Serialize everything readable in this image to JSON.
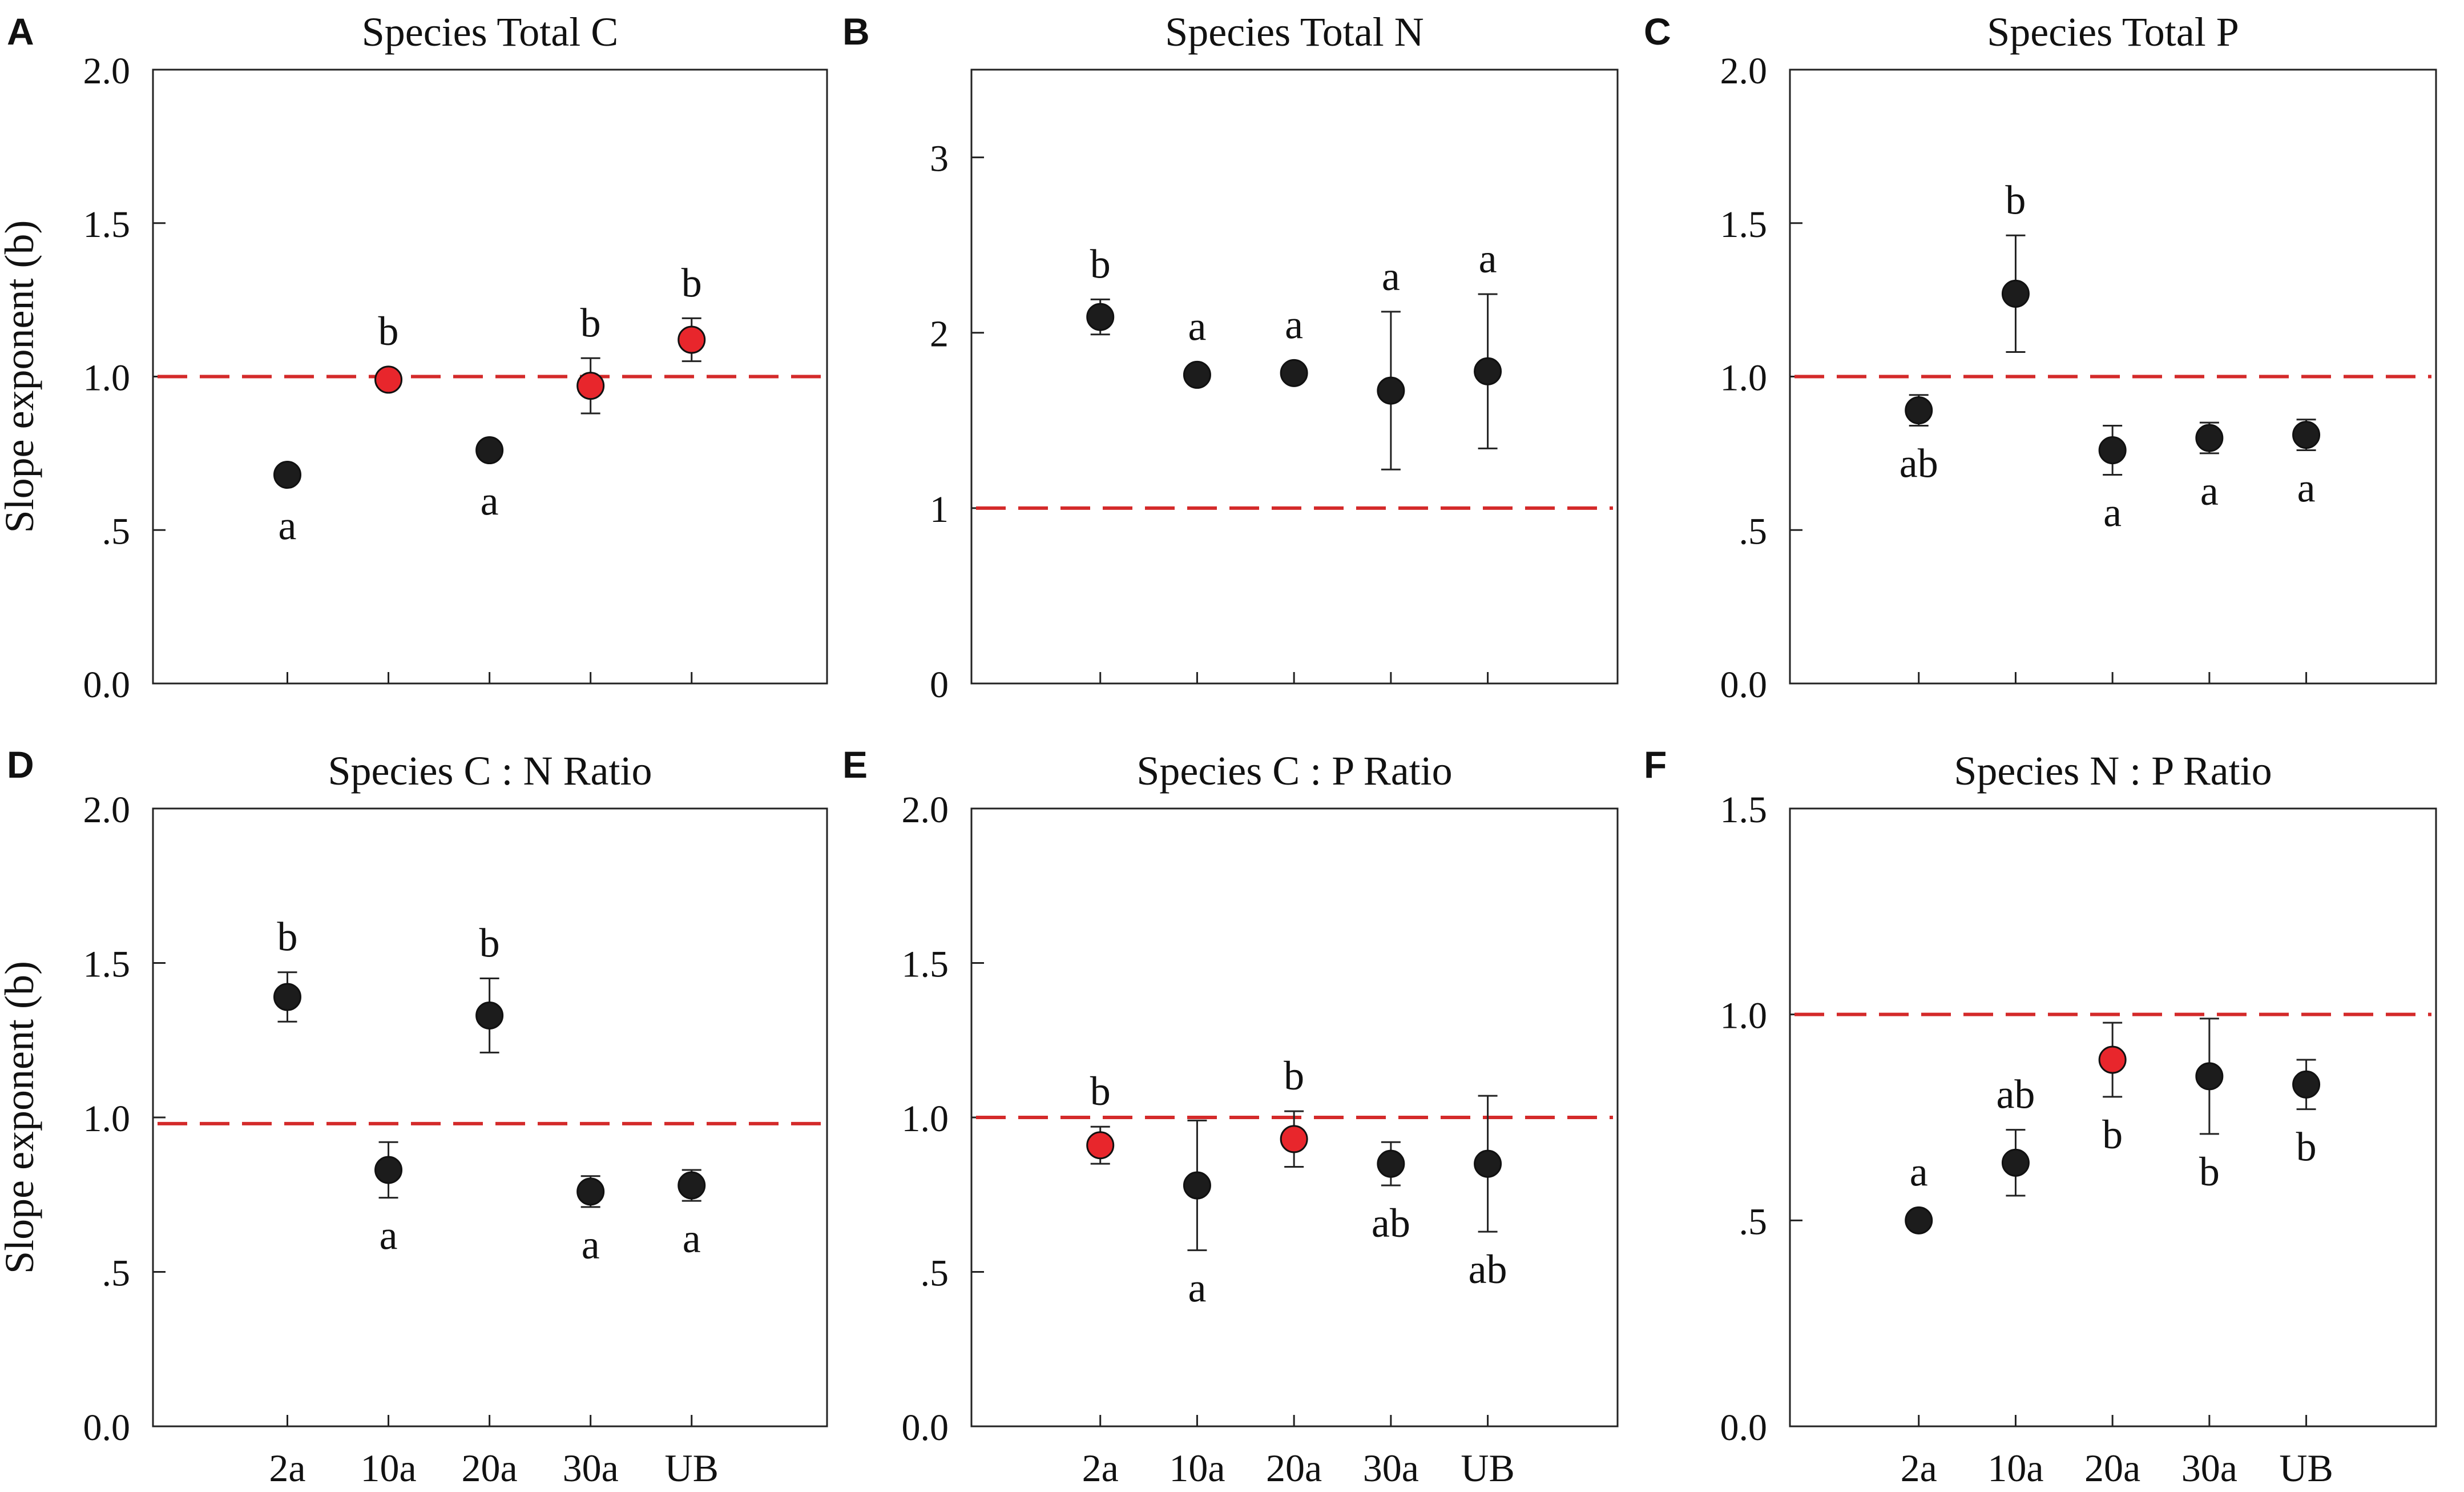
{
  "chart_data": [
    {
      "type": "scatter",
      "panel_letter": "A",
      "title": "Species Total C",
      "ylabel": "Slope exponent (b)",
      "ylim": [
        0,
        2
      ],
      "y_ticks": [
        0,
        0.5,
        1.0,
        1.5,
        2.0
      ],
      "y_tick_labels": [
        "0.0",
        ".5",
        "1.0",
        "1.5",
        "2.0"
      ],
      "categories": [
        "2a",
        "10a",
        "20a",
        "30a",
        "UB"
      ],
      "show_x_labels": false,
      "reference_line": 1.0,
      "reference_color": "#d42a2a",
      "values": [
        0.68,
        0.99,
        0.76,
        0.97,
        1.12
      ],
      "error": [
        0.02,
        0.01,
        0.01,
        0.09,
        0.07
      ],
      "point_colors": [
        "#1c1c1c",
        "#e8262c",
        "#1c1c1c",
        "#e8262c",
        "#e8262c"
      ],
      "letters": [
        "a",
        "b",
        "a",
        "b",
        "b"
      ],
      "letter_pos": [
        "below",
        "above",
        "below",
        "above",
        "above"
      ]
    },
    {
      "type": "scatter",
      "panel_letter": "B",
      "title": "Species Total N",
      "ylabel": "",
      "ylim": [
        0,
        3.5
      ],
      "y_ticks": [
        0,
        1,
        2,
        3
      ],
      "y_tick_labels": [
        "0",
        "1",
        "2",
        "3"
      ],
      "categories": [
        "2a",
        "10a",
        "20a",
        "30a",
        "UB"
      ],
      "show_x_labels": false,
      "reference_line": 1.0,
      "reference_color": "#d42a2a",
      "values": [
        2.09,
        1.76,
        1.77,
        1.67,
        1.78
      ],
      "error": [
        0.1,
        0.02,
        0.02,
        0.45,
        0.44
      ],
      "point_colors": [
        "#1c1c1c",
        "#1c1c1c",
        "#1c1c1c",
        "#1c1c1c",
        "#1c1c1c"
      ],
      "letters": [
        "b",
        "a",
        "a",
        "a",
        "a"
      ],
      "letter_pos": [
        "above",
        "above",
        "above",
        "above",
        "above"
      ]
    },
    {
      "type": "scatter",
      "panel_letter": "C",
      "title": "Species Total P",
      "ylabel": "",
      "ylim": [
        0,
        2
      ],
      "y_ticks": [
        0,
        0.5,
        1.0,
        1.5,
        2.0
      ],
      "y_tick_labels": [
        "0.0",
        ".5",
        "1.0",
        "1.5",
        "2.0"
      ],
      "categories": [
        "2a",
        "10a",
        "20a",
        "30a",
        "UB"
      ],
      "show_x_labels": false,
      "reference_line": 1.0,
      "reference_color": "#d42a2a",
      "values": [
        0.89,
        1.27,
        0.76,
        0.8,
        0.81
      ],
      "error": [
        0.05,
        0.19,
        0.08,
        0.05,
        0.05
      ],
      "point_colors": [
        "#1c1c1c",
        "#1c1c1c",
        "#1c1c1c",
        "#1c1c1c",
        "#1c1c1c"
      ],
      "letters": [
        "ab",
        "b",
        "a",
        "a",
        "a"
      ],
      "letter_pos": [
        "below",
        "above",
        "below",
        "below",
        "below"
      ]
    },
    {
      "type": "scatter",
      "panel_letter": "D",
      "title": "Species C : N Ratio",
      "ylabel": "Slope exponent (b)",
      "ylim": [
        0,
        2
      ],
      "y_ticks": [
        0,
        0.5,
        1.0,
        1.5,
        2.0
      ],
      "y_tick_labels": [
        "0.0",
        ".5",
        "1.0",
        "1.5",
        "2.0"
      ],
      "categories": [
        "2a",
        "10a",
        "20a",
        "30a",
        "UB"
      ],
      "show_x_labels": true,
      "reference_line": 0.98,
      "reference_color": "#d42a2a",
      "values": [
        1.39,
        0.83,
        1.33,
        0.76,
        0.78
      ],
      "error": [
        0.08,
        0.09,
        0.12,
        0.05,
        0.05
      ],
      "point_colors": [
        "#1c1c1c",
        "#1c1c1c",
        "#1c1c1c",
        "#1c1c1c",
        "#1c1c1c"
      ],
      "letters": [
        "b",
        "a",
        "b",
        "a",
        "a"
      ],
      "letter_pos": [
        "above",
        "below",
        "above",
        "below",
        "below"
      ]
    },
    {
      "type": "scatter",
      "panel_letter": "E",
      "title": "Species C : P Ratio",
      "ylabel": "",
      "ylim": [
        0,
        2
      ],
      "y_ticks": [
        0,
        0.5,
        1.0,
        1.5,
        2.0
      ],
      "y_tick_labels": [
        "0.0",
        ".5",
        "1.0",
        "1.5",
        "2.0"
      ],
      "categories": [
        "2a",
        "10a",
        "20a",
        "30a",
        "UB"
      ],
      "show_x_labels": true,
      "reference_line": 1.0,
      "reference_color": "#d42a2a",
      "values": [
        0.91,
        0.78,
        0.93,
        0.85,
        0.85
      ],
      "error": [
        0.06,
        0.21,
        0.09,
        0.07,
        0.22
      ],
      "point_colors": [
        "#e8262c",
        "#1c1c1c",
        "#e8262c",
        "#1c1c1c",
        "#1c1c1c"
      ],
      "letters": [
        "b",
        "a",
        "b",
        "ab",
        "ab"
      ],
      "letter_pos": [
        "above",
        "below",
        "above",
        "below",
        "below"
      ]
    },
    {
      "type": "scatter",
      "panel_letter": "F",
      "title": "Species N : P Ratio",
      "ylabel": "",
      "ylim": [
        0,
        1.5
      ],
      "y_ticks": [
        0,
        0.5,
        1.0,
        1.5
      ],
      "y_tick_labels": [
        "0.0",
        ".5",
        "1.0",
        "1.5"
      ],
      "categories": [
        "2a",
        "10a",
        "20a",
        "30a",
        "UB"
      ],
      "show_x_labels": true,
      "reference_line": 1.0,
      "reference_color": "#d42a2a",
      "values": [
        0.5,
        0.64,
        0.89,
        0.85,
        0.83
      ],
      "error": [
        0.01,
        0.08,
        0.09,
        0.14,
        0.06
      ],
      "point_colors": [
        "#1c1c1c",
        "#1c1c1c",
        "#e8262c",
        "#1c1c1c",
        "#1c1c1c"
      ],
      "letters": [
        "a",
        "ab",
        "b",
        "b",
        "b"
      ],
      "letter_pos": [
        "above",
        "above",
        "below",
        "below",
        "below"
      ]
    }
  ]
}
